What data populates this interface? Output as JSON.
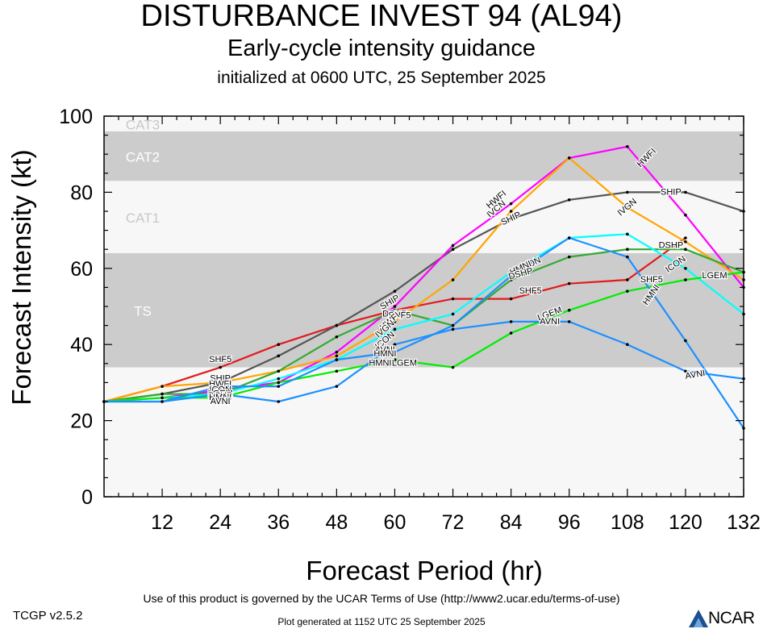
{
  "header": {
    "title": "DISTURBANCE INVEST 94 (AL94)",
    "subtitle": "Early-cycle intensity guidance",
    "init": "initialized at 0600 UTC, 25 September 2025"
  },
  "footer": {
    "terms": "Use of this product is governed by the UCAR Terms of Use (http://www2.ucar.edu/terms-of-use)",
    "version": "TCGP v2.5.2",
    "generated": "Plot generated at 1152 UTC   25 September 2025",
    "logo": "NCAR"
  },
  "chart_data": {
    "type": "line",
    "xlabel": "Forecast Period (hr)",
    "ylabel": "Forecast Intensity (kt)",
    "xlim": [
      0,
      132
    ],
    "ylim": [
      0,
      100
    ],
    "xticks": [
      12,
      24,
      36,
      48,
      60,
      72,
      84,
      96,
      108,
      120,
      132
    ],
    "yticks": [
      0,
      20,
      40,
      60,
      80,
      100
    ],
    "grid": false,
    "bands": [
      {
        "label": "TS",
        "from": 34,
        "to": 64,
        "color": "#cccccc"
      },
      {
        "label": "CAT1",
        "from": 64,
        "to": 83,
        "color": "#f7f7f7"
      },
      {
        "label": "CAT2",
        "from": 83,
        "to": 96,
        "color": "#cccccc"
      },
      {
        "label": "CAT3",
        "from": 96,
        "to": 100,
        "color": "#f7f7f7"
      }
    ],
    "series": [
      {
        "name": "SHF5",
        "color": "#e31a1c",
        "x": [
          0,
          12,
          24,
          36,
          48,
          60,
          72,
          84,
          96,
          108,
          120
        ],
        "y": [
          25,
          29,
          34,
          40,
          45,
          49,
          52,
          52,
          56,
          57,
          68
        ]
      },
      {
        "name": "SHIP",
        "color": "#555555",
        "x": [
          0,
          12,
          24,
          36,
          48,
          60,
          72,
          84,
          96,
          108,
          120,
          132
        ],
        "y": [
          25,
          27,
          30,
          37,
          45,
          54,
          65,
          73,
          78,
          80,
          80,
          75
        ]
      },
      {
        "name": "HWFI",
        "color": "#ff00ff",
        "x": [
          0,
          12,
          24,
          36,
          48,
          60,
          72,
          84,
          96,
          108,
          120,
          132
        ],
        "y": [
          25,
          26,
          28,
          30,
          38,
          50,
          66,
          77,
          89,
          92,
          74,
          55
        ]
      },
      {
        "name": "IVCN",
        "color": "#ffa500",
        "x": [
          0,
          12,
          24,
          36,
          48,
          60,
          72,
          84,
          96,
          108,
          120,
          132
        ],
        "y": [
          25,
          29,
          30,
          33,
          37,
          46,
          57,
          75,
          89,
          76,
          67,
          57
        ]
      },
      {
        "name": "DSHP",
        "color": "#33aa33",
        "x": [
          0,
          12,
          24,
          36,
          48,
          60,
          72,
          84,
          96,
          108,
          120,
          132
        ],
        "y": [
          25,
          27,
          27,
          33,
          42,
          49,
          45,
          57,
          63,
          65,
          65,
          59
        ]
      },
      {
        "name": "ICON",
        "color": "#00ffff",
        "x": [
          0,
          12,
          24,
          36,
          48,
          60,
          72,
          84,
          96,
          108,
          120,
          132
        ],
        "y": [
          25,
          26,
          27,
          31,
          36,
          44,
          48,
          59,
          68,
          69,
          60,
          48
        ]
      },
      {
        "name": "LGEM",
        "color": "#00ee00",
        "x": [
          0,
          12,
          24,
          36,
          48,
          60,
          72,
          84,
          96,
          108,
          120,
          132
        ],
        "y": [
          25,
          26,
          26,
          30,
          33,
          36,
          34,
          43,
          49,
          54,
          57,
          59
        ]
      },
      {
        "name": "HMNI",
        "color": "#1e90ff",
        "x": [
          0,
          12,
          24,
          36,
          48,
          60,
          72,
          84,
          96,
          108,
          120,
          132
        ],
        "y": [
          25,
          25,
          29,
          29,
          36,
          38,
          45,
          58,
          68,
          63,
          41,
          18
        ]
      },
      {
        "name": "AVNI",
        "color": "#1e90ff",
        "x": [
          0,
          12,
          24,
          36,
          48,
          60,
          72,
          84,
          96,
          108,
          120,
          132
        ],
        "y": [
          25,
          25,
          27,
          25,
          29,
          40,
          44,
          46,
          46,
          40,
          33,
          31
        ]
      }
    ],
    "line_labels": [
      {
        "text": "SHF5",
        "x": 24,
        "y": 36
      },
      {
        "text": "SHIP",
        "x": 24,
        "y": 31
      },
      {
        "text": "HWFI",
        "x": 24,
        "y": 29.5
      },
      {
        "text": "ICON",
        "x": 24,
        "y": 28
      },
      {
        "text": "LGEM",
        "x": 24,
        "y": 27
      },
      {
        "text": "DSHP",
        "x": 24,
        "y": 26.5
      },
      {
        "text": "HMNI",
        "x": 24,
        "y": 26
      },
      {
        "text": "AVNI",
        "x": 24,
        "y": 25
      },
      {
        "text": "SHIP",
        "x": 59,
        "y": 51,
        "angle": -30
      },
      {
        "text": "DSHP",
        "x": 60,
        "y": 48
      },
      {
        "text": "SHF5",
        "x": 61,
        "y": 47.5
      },
      {
        "text": "HWFI",
        "x": 59,
        "y": 46,
        "angle": -40
      },
      {
        "text": "IVGN",
        "x": 58,
        "y": 44,
        "angle": -40
      },
      {
        "text": "ICON",
        "x": 58,
        "y": 41,
        "angle": -40
      },
      {
        "text": "AVNI",
        "x": 58,
        "y": 38.5
      },
      {
        "text": "HMNI",
        "x": 58,
        "y": 37.5
      },
      {
        "text": "HMNI",
        "x": 57,
        "y": 35
      },
      {
        "text": "LGEM",
        "x": 62,
        "y": 35
      },
      {
        "text": "HWFI",
        "x": 81,
        "y": 78,
        "angle": -40
      },
      {
        "text": "IVCN",
        "x": 81,
        "y": 75.5,
        "angle": -40
      },
      {
        "text": "SHIP",
        "x": 84,
        "y": 73,
        "angle": -25
      },
      {
        "text": "ICON",
        "x": 88,
        "y": 61,
        "angle": -25
      },
      {
        "text": "HMNI",
        "x": 86,
        "y": 60,
        "angle": -25
      },
      {
        "text": "DSHP",
        "x": 86,
        "y": 58.5,
        "angle": -15
      },
      {
        "text": "SHF5",
        "x": 88,
        "y": 54
      },
      {
        "text": "LGEM",
        "x": 92,
        "y": 48,
        "angle": -20
      },
      {
        "text": "AVNI",
        "x": 92,
        "y": 46
      },
      {
        "text": "HWFI",
        "x": 112,
        "y": 89,
        "angle": -45
      },
      {
        "text": "SHIP",
        "x": 117,
        "y": 80
      },
      {
        "text": "IVGN",
        "x": 108,
        "y": 76,
        "angle": -40
      },
      {
        "text": "DSHP",
        "x": 117,
        "y": 66
      },
      {
        "text": "ICON",
        "x": 118,
        "y": 61,
        "angle": -35
      },
      {
        "text": "LGEM",
        "x": 126,
        "y": 58
      },
      {
        "text": "SHF5",
        "x": 113,
        "y": 57
      },
      {
        "text": "HMNI",
        "x": 113,
        "y": 53,
        "angle": -55
      },
      {
        "text": "AVNI",
        "x": 122,
        "y": 32,
        "angle": -10
      }
    ]
  }
}
